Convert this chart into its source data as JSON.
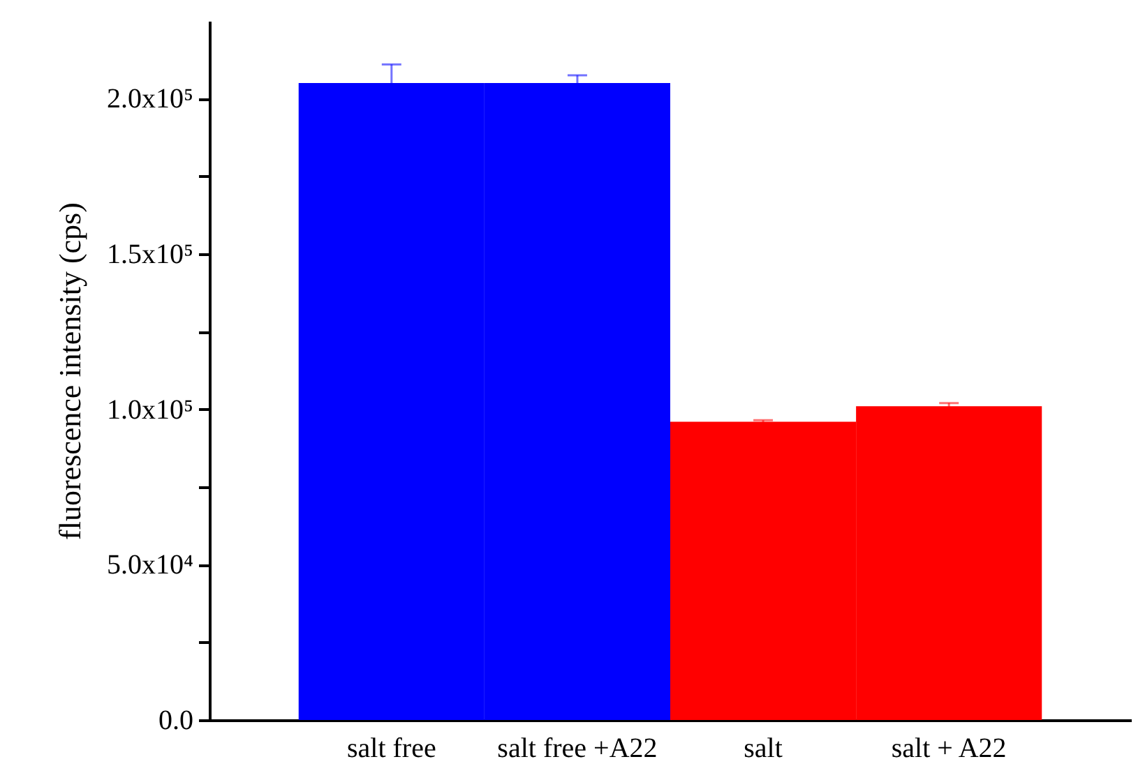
{
  "chart_data": {
    "type": "bar",
    "ylabel": "fluorescence intensity (cps)",
    "categories": [
      "salt free",
      "salt free +A22",
      "salt",
      "salt + A22"
    ],
    "values": [
      205000,
      205000,
      96000,
      101000
    ],
    "errors": [
      6000,
      2500,
      500,
      1000
    ],
    "colors": [
      "#0000ff",
      "#0000ff",
      "#ff0000",
      "#ff0000"
    ],
    "ylim": [
      0,
      225000
    ],
    "yticks": [
      {
        "value": 0,
        "label": "0.0"
      },
      {
        "value": 25000,
        "label": null
      },
      {
        "value": 50000,
        "label": "5.0x10⁴"
      },
      {
        "value": 75000,
        "label": null
      },
      {
        "value": 100000,
        "label": "1.0x10⁵"
      },
      {
        "value": 125000,
        "label": null
      },
      {
        "value": 150000,
        "label": "1.5x10⁵"
      },
      {
        "value": 175000,
        "label": null
      },
      {
        "value": 200000,
        "label": "2.0x10⁵"
      }
    ],
    "grid": false
  }
}
